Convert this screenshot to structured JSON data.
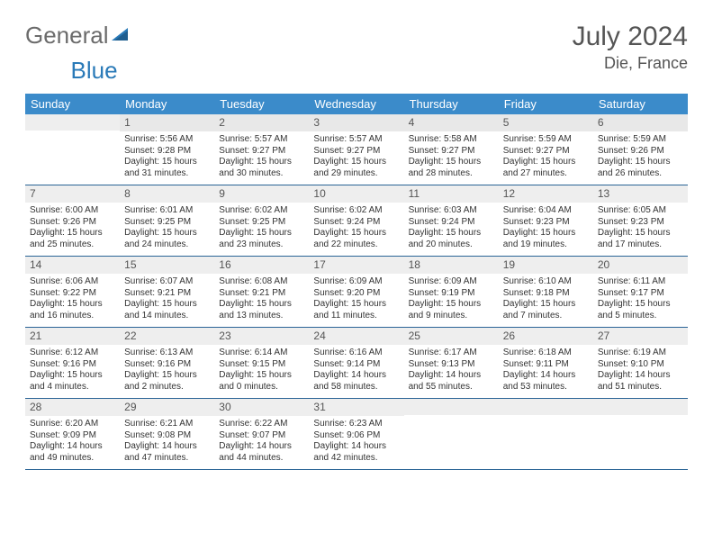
{
  "logo": {
    "text1": "General",
    "text2": "Blue"
  },
  "header": {
    "month_title": "July 2024",
    "location": "Die, France"
  },
  "colors": {
    "header_bg": "#3b8bca",
    "header_text": "#ffffff",
    "band_bg": "#eeeeee",
    "row_border": "#2a6496",
    "logo_gray": "#6b6b6b",
    "logo_blue": "#2a7ab8"
  },
  "weekdays": [
    "Sunday",
    "Monday",
    "Tuesday",
    "Wednesday",
    "Thursday",
    "Friday",
    "Saturday"
  ],
  "weeks": [
    [
      {
        "day": "",
        "lines": [
          "",
          "",
          "",
          ""
        ]
      },
      {
        "day": "1",
        "lines": [
          "Sunrise: 5:56 AM",
          "Sunset: 9:28 PM",
          "Daylight: 15 hours",
          "and 31 minutes."
        ]
      },
      {
        "day": "2",
        "lines": [
          "Sunrise: 5:57 AM",
          "Sunset: 9:27 PM",
          "Daylight: 15 hours",
          "and 30 minutes."
        ]
      },
      {
        "day": "3",
        "lines": [
          "Sunrise: 5:57 AM",
          "Sunset: 9:27 PM",
          "Daylight: 15 hours",
          "and 29 minutes."
        ]
      },
      {
        "day": "4",
        "lines": [
          "Sunrise: 5:58 AM",
          "Sunset: 9:27 PM",
          "Daylight: 15 hours",
          "and 28 minutes."
        ]
      },
      {
        "day": "5",
        "lines": [
          "Sunrise: 5:59 AM",
          "Sunset: 9:27 PM",
          "Daylight: 15 hours",
          "and 27 minutes."
        ]
      },
      {
        "day": "6",
        "lines": [
          "Sunrise: 5:59 AM",
          "Sunset: 9:26 PM",
          "Daylight: 15 hours",
          "and 26 minutes."
        ]
      }
    ],
    [
      {
        "day": "7",
        "lines": [
          "Sunrise: 6:00 AM",
          "Sunset: 9:26 PM",
          "Daylight: 15 hours",
          "and 25 minutes."
        ]
      },
      {
        "day": "8",
        "lines": [
          "Sunrise: 6:01 AM",
          "Sunset: 9:25 PM",
          "Daylight: 15 hours",
          "and 24 minutes."
        ]
      },
      {
        "day": "9",
        "lines": [
          "Sunrise: 6:02 AM",
          "Sunset: 9:25 PM",
          "Daylight: 15 hours",
          "and 23 minutes."
        ]
      },
      {
        "day": "10",
        "lines": [
          "Sunrise: 6:02 AM",
          "Sunset: 9:24 PM",
          "Daylight: 15 hours",
          "and 22 minutes."
        ]
      },
      {
        "day": "11",
        "lines": [
          "Sunrise: 6:03 AM",
          "Sunset: 9:24 PM",
          "Daylight: 15 hours",
          "and 20 minutes."
        ]
      },
      {
        "day": "12",
        "lines": [
          "Sunrise: 6:04 AM",
          "Sunset: 9:23 PM",
          "Daylight: 15 hours",
          "and 19 minutes."
        ]
      },
      {
        "day": "13",
        "lines": [
          "Sunrise: 6:05 AM",
          "Sunset: 9:23 PM",
          "Daylight: 15 hours",
          "and 17 minutes."
        ]
      }
    ],
    [
      {
        "day": "14",
        "lines": [
          "Sunrise: 6:06 AM",
          "Sunset: 9:22 PM",
          "Daylight: 15 hours",
          "and 16 minutes."
        ]
      },
      {
        "day": "15",
        "lines": [
          "Sunrise: 6:07 AM",
          "Sunset: 9:21 PM",
          "Daylight: 15 hours",
          "and 14 minutes."
        ]
      },
      {
        "day": "16",
        "lines": [
          "Sunrise: 6:08 AM",
          "Sunset: 9:21 PM",
          "Daylight: 15 hours",
          "and 13 minutes."
        ]
      },
      {
        "day": "17",
        "lines": [
          "Sunrise: 6:09 AM",
          "Sunset: 9:20 PM",
          "Daylight: 15 hours",
          "and 11 minutes."
        ]
      },
      {
        "day": "18",
        "lines": [
          "Sunrise: 6:09 AM",
          "Sunset: 9:19 PM",
          "Daylight: 15 hours",
          "and 9 minutes."
        ]
      },
      {
        "day": "19",
        "lines": [
          "Sunrise: 6:10 AM",
          "Sunset: 9:18 PM",
          "Daylight: 15 hours",
          "and 7 minutes."
        ]
      },
      {
        "day": "20",
        "lines": [
          "Sunrise: 6:11 AM",
          "Sunset: 9:17 PM",
          "Daylight: 15 hours",
          "and 5 minutes."
        ]
      }
    ],
    [
      {
        "day": "21",
        "lines": [
          "Sunrise: 6:12 AM",
          "Sunset: 9:16 PM",
          "Daylight: 15 hours",
          "and 4 minutes."
        ]
      },
      {
        "day": "22",
        "lines": [
          "Sunrise: 6:13 AM",
          "Sunset: 9:16 PM",
          "Daylight: 15 hours",
          "and 2 minutes."
        ]
      },
      {
        "day": "23",
        "lines": [
          "Sunrise: 6:14 AM",
          "Sunset: 9:15 PM",
          "Daylight: 15 hours",
          "and 0 minutes."
        ]
      },
      {
        "day": "24",
        "lines": [
          "Sunrise: 6:16 AM",
          "Sunset: 9:14 PM",
          "Daylight: 14 hours",
          "and 58 minutes."
        ]
      },
      {
        "day": "25",
        "lines": [
          "Sunrise: 6:17 AM",
          "Sunset: 9:13 PM",
          "Daylight: 14 hours",
          "and 55 minutes."
        ]
      },
      {
        "day": "26",
        "lines": [
          "Sunrise: 6:18 AM",
          "Sunset: 9:11 PM",
          "Daylight: 14 hours",
          "and 53 minutes."
        ]
      },
      {
        "day": "27",
        "lines": [
          "Sunrise: 6:19 AM",
          "Sunset: 9:10 PM",
          "Daylight: 14 hours",
          "and 51 minutes."
        ]
      }
    ],
    [
      {
        "day": "28",
        "lines": [
          "Sunrise: 6:20 AM",
          "Sunset: 9:09 PM",
          "Daylight: 14 hours",
          "and 49 minutes."
        ]
      },
      {
        "day": "29",
        "lines": [
          "Sunrise: 6:21 AM",
          "Sunset: 9:08 PM",
          "Daylight: 14 hours",
          "and 47 minutes."
        ]
      },
      {
        "day": "30",
        "lines": [
          "Sunrise: 6:22 AM",
          "Sunset: 9:07 PM",
          "Daylight: 14 hours",
          "and 44 minutes."
        ]
      },
      {
        "day": "31",
        "lines": [
          "Sunrise: 6:23 AM",
          "Sunset: 9:06 PM",
          "Daylight: 14 hours",
          "and 42 minutes."
        ]
      },
      {
        "day": "",
        "lines": [
          "",
          "",
          "",
          ""
        ]
      },
      {
        "day": "",
        "lines": [
          "",
          "",
          "",
          ""
        ]
      },
      {
        "day": "",
        "lines": [
          "",
          "",
          "",
          ""
        ]
      }
    ]
  ]
}
